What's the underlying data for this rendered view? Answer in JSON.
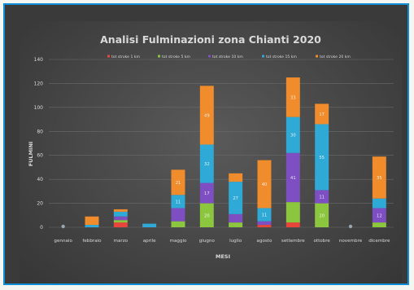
{
  "chart_data": {
    "type": "bar",
    "stacked": true,
    "title": "Analisi Fulminazioni zona Chianti  2020",
    "xlabel": "MESI",
    "ylabel": "FULMINI",
    "ylim": [
      0,
      140
    ],
    "yticks": [
      0,
      20,
      40,
      60,
      80,
      100,
      120,
      140
    ],
    "legend_position": "top",
    "categories": [
      "gennaio",
      "febbraio",
      "marzo",
      "aprile",
      "maggio",
      "giugno",
      "luglio",
      "agosto",
      "settembre",
      "ottobre",
      "novembre",
      "dicembre"
    ],
    "series": [
      {
        "name": "tot stroke 1 km",
        "color": "#e8463a",
        "values": [
          0,
          0,
          4,
          0,
          0,
          0,
          0,
          2,
          4,
          0,
          0,
          0
        ]
      },
      {
        "name": "tot stroke 5 km",
        "color": "#8cc63e",
        "values": [
          0,
          0,
          2,
          0,
          5,
          20,
          4,
          0,
          17,
          20,
          0,
          4
        ]
      },
      {
        "name": "tot stroke 10 km",
        "color": "#7e4fc2",
        "values": [
          0,
          0,
          3,
          0,
          11,
          17,
          7,
          3,
          41,
          11,
          0,
          12
        ]
      },
      {
        "name": "tot stroke 15 km",
        "color": "#2fa9d6",
        "values": [
          0,
          2,
          4,
          3,
          11,
          32,
          27,
          11,
          30,
          55,
          0,
          8
        ]
      },
      {
        "name": "tot stroke 20 km",
        "color": "#f08c2b",
        "values": [
          0,
          7,
          2,
          0,
          21,
          49,
          7,
          40,
          33,
          17,
          0,
          35
        ]
      }
    ],
    "data_labels": {
      "maggio": [
        "",
        "",
        "",
        "11",
        "21"
      ],
      "giugno": [
        "",
        "20",
        "17",
        "32",
        "49"
      ],
      "luglio": [
        "",
        "",
        "",
        "27",
        ""
      ],
      "agosto": [
        "",
        "",
        "",
        "11",
        "40"
      ],
      "settembre": [
        "",
        "",
        "41",
        "30",
        "33"
      ],
      "ottobre": [
        "",
        "20",
        "11",
        "55",
        "17"
      ],
      "dicembre": [
        "",
        "",
        "12",
        "",
        "35"
      ]
    }
  }
}
